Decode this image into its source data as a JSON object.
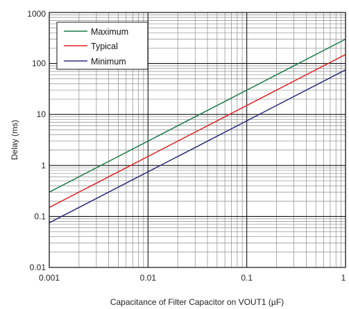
{
  "chart_data": {
    "type": "line",
    "xlabel": "Capacitance of Filter Capacitor on VOUT1 (µF)",
    "ylabel": "Delay (ms)",
    "xscale": "log",
    "yscale": "log",
    "xlim": [
      0.001,
      1
    ],
    "ylim": [
      0.01,
      1000
    ],
    "x_ticks": [
      0.001,
      0.01,
      0.1,
      1
    ],
    "x_tick_labels": [
      "0.001",
      "0.01",
      "0.1",
      "1"
    ],
    "y_ticks": [
      0.01,
      0.1,
      1,
      10,
      100,
      1000
    ],
    "y_tick_labels": [
      "0.01",
      "0.1",
      "1",
      "10",
      "100",
      "1000"
    ],
    "grid": true,
    "legend_position": "top-left",
    "series": [
      {
        "name": "Maximum",
        "color": "#1a7a4a",
        "points": [
          [
            0.001,
            0.3
          ],
          [
            1,
            300
          ]
        ]
      },
      {
        "name": "Typical",
        "color": "#e02020",
        "points": [
          [
            0.001,
            0.15
          ],
          [
            1,
            150
          ]
        ]
      },
      {
        "name": "Minimum",
        "color": "#2a2a7a",
        "points": [
          [
            0.001,
            0.075
          ],
          [
            1,
            75
          ]
        ]
      }
    ]
  }
}
